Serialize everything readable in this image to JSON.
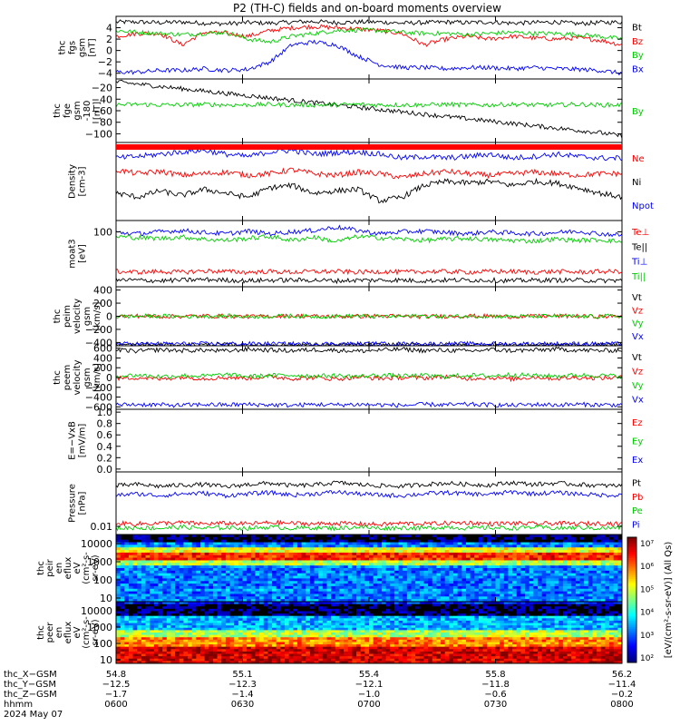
{
  "title": "P2 (TH-C) fields and on-board moments overview",
  "chart_data": [
    {
      "type": "line",
      "ylabel": [
        "thc",
        "fgs",
        "gsm",
        "[nT]"
      ],
      "ylim": [
        -5,
        6
      ],
      "ticks": [
        [
          "4",
          4
        ],
        [
          "2",
          2
        ],
        [
          "0",
          0
        ],
        [
          "−2",
          -2
        ],
        [
          "−4",
          -4
        ]
      ],
      "series": [
        {
          "name": "Bt",
          "color": "#000000",
          "values": [
            5.0,
            5.0,
            4.9,
            5.0,
            4.8,
            4.7,
            4.9,
            4.8,
            5.0,
            5.1,
            4.9,
            5.0,
            5.0,
            4.8,
            4.9,
            5.0,
            4.9,
            5.0,
            4.8,
            4.9,
            5.0,
            4.7,
            4.9,
            5.0
          ]
        },
        {
          "name": "Bz",
          "color": "#ff0000",
          "values": [
            2.5,
            3.0,
            3.0,
            1.0,
            3.2,
            3.0,
            2.5,
            3.5,
            4.0,
            4.2,
            4.0,
            3.8,
            3.5,
            3.0,
            1.0,
            2.0,
            2.5,
            2.0,
            2.5,
            2.2,
            2.0,
            2.2,
            1.8,
            1.0
          ]
        },
        {
          "name": "By",
          "color": "#00cc00",
          "values": [
            3.5,
            3.2,
            3.0,
            2.8,
            3.0,
            3.2,
            2.0,
            1.5,
            2.5,
            3.0,
            3.5,
            3.6,
            3.5,
            3.2,
            3.0,
            3.0,
            2.8,
            3.0,
            3.2,
            3.0,
            3.0,
            2.8,
            2.5,
            2.0
          ]
        },
        {
          "name": "Bx",
          "color": "#0000ff",
          "values": [
            -3.8,
            -3.8,
            -3.5,
            -3.5,
            -3.2,
            -3.5,
            -3.3,
            -2.0,
            1.0,
            1.5,
            1.0,
            -1.0,
            -2.5,
            -3.0,
            -3.0,
            -3.2,
            -3.0,
            -3.0,
            -3.2,
            -3.0,
            -3.2,
            -3.3,
            -3.5,
            -4.0
          ]
        }
      ]
    },
    {
      "type": "line",
      "ylabel": [
        "thc",
        "fge",
        "gsm",
        "-180",
        "[nT]"
      ],
      "ylim": [
        -115,
        -5
      ],
      "ticks": [
        [
          "−20",
          -20
        ],
        [
          "−40",
          -40
        ],
        [
          "−60",
          -60
        ],
        [
          "−80",
          -80
        ],
        [
          "−100",
          -100
        ]
      ],
      "series": [
        {
          "name": "",
          "color": "#000000",
          "values": [
            -10,
            -14,
            -18,
            -22,
            -26,
            -30,
            -34,
            -38,
            -42,
            -46,
            -50,
            -54,
            -58,
            -62,
            -66,
            -70,
            -74,
            -78,
            -82,
            -86,
            -90,
            -94,
            -98,
            -104
          ]
        },
        {
          "name": "By",
          "color": "#00cc00",
          "values": [
            -50,
            -49,
            -50,
            -50,
            -49,
            -50,
            -50,
            -49,
            -50,
            -50,
            -50,
            -49,
            -50,
            -50,
            -50,
            -49,
            -50,
            -50,
            -49,
            -50,
            -50,
            -49,
            -50,
            -50
          ]
        }
      ]
    },
    {
      "type": "line",
      "ylabel": [
        "Density",
        "[cm-3]"
      ],
      "ylim": [
        0,
        10
      ],
      "ticks": [],
      "series": [
        {
          "name": "Ne",
          "color": "#ff0000",
          "values": [
            6.5,
            6.0,
            6.3,
            5.8,
            6.0,
            6.2,
            5.8,
            6.0,
            6.5,
            6.0,
            5.8,
            6.2,
            6.0,
            5.5,
            6.0,
            6.3,
            6.0,
            5.8,
            6.0,
            6.2,
            6.0,
            5.8,
            6.0,
            6.0
          ]
        },
        {
          "name": "Ni",
          "color": "#000000",
          "values": [
            3.5,
            3.0,
            3.8,
            3.2,
            4.0,
            3.5,
            3.0,
            4.2,
            4.5,
            3.5,
            3.8,
            4.0,
            2.5,
            3.0,
            4.5,
            5.0,
            4.8,
            5.0,
            4.5,
            5.0,
            4.8,
            4.2,
            3.5,
            3.0
          ]
        },
        {
          "name": "Npot",
          "color": "#0000ff",
          "values": [
            8.0,
            8.2,
            8.5,
            8.8,
            9.0,
            8.5,
            8.2,
            8.8,
            9.0,
            8.5,
            8.7,
            8.8,
            8.5,
            8.0,
            8.2,
            8.0,
            8.2,
            8.5,
            8.0,
            8.2,
            8.5,
            8.2,
            8.0,
            8.0
          ]
        }
      ]
    },
    {
      "type": "line",
      "ylabel": [
        "moat3",
        "[eV]"
      ],
      "ylim": [
        0,
        10
      ],
      "ticks": [
        [
          "100",
          8.3
        ]
      ],
      "series": [
        {
          "name": "Te⊥",
          "color": "#ff0000",
          "values": [
            2.3,
            2.2,
            2.3,
            2.2,
            2.4,
            2.3,
            2.2,
            2.3,
            2.2,
            2.3,
            2.3,
            2.2,
            2.3,
            2.2,
            2.3,
            2.3,
            2.2,
            2.3,
            2.3,
            2.2,
            2.3,
            2.2,
            2.3,
            2.3
          ]
        },
        {
          "name": "Te||",
          "color": "#000000",
          "values": [
            1.0,
            1.0,
            0.9,
            1.0,
            1.1,
            1.0,
            0.9,
            1.0,
            1.0,
            1.0,
            0.9,
            1.0,
            1.0,
            1.0,
            0.9,
            1.0,
            1.0,
            1.0,
            0.9,
            1.0,
            1.0,
            1.0,
            0.9,
            1.0
          ]
        },
        {
          "name": "Ti⊥",
          "color": "#0000ff",
          "values": [
            8.2,
            8.0,
            8.3,
            8.5,
            8.2,
            8.0,
            8.4,
            8.0,
            8.3,
            8.5,
            9.0,
            8.5,
            8.0,
            8.3,
            8.4,
            8.2,
            8.0,
            8.3,
            8.1,
            8.0,
            8.2,
            8.4,
            8.0,
            7.8
          ]
        },
        {
          "name": "Ti||",
          "color": "#00cc00",
          "values": [
            7.6,
            7.4,
            7.3,
            7.5,
            7.2,
            7.0,
            7.3,
            7.6,
            7.0,
            7.5,
            6.8,
            7.6,
            7.4,
            7.2,
            7.0,
            7.2,
            7.3,
            7.1,
            7.0,
            6.9,
            7.2,
            7.0,
            7.1,
            6.8
          ]
        }
      ]
    },
    {
      "type": "line",
      "ylabel": [
        "thc",
        "peim",
        "velocity",
        "gsm",
        "[km/s]"
      ],
      "ylim": [
        -450,
        450
      ],
      "ticks": [
        [
          "400",
          400
        ],
        [
          "200",
          200
        ],
        [
          "0",
          0
        ],
        [
          "−200",
          -200
        ],
        [
          "−400",
          -400
        ]
      ],
      "series": [
        {
          "name": "Vt",
          "color": "#000000",
          "values": [
            -435,
            -435,
            -435,
            -435,
            -435,
            -435,
            -435,
            -435,
            -435,
            -435,
            -435,
            -435,
            -435,
            -435,
            -435,
            -435,
            -435,
            -435,
            -435,
            -435,
            -435,
            -435,
            -435,
            -435
          ]
        },
        {
          "name": "Vz",
          "color": "#ff0000",
          "values": [
            0,
            5,
            -5,
            0,
            5,
            0,
            -5,
            0,
            5,
            0,
            -5,
            0,
            5,
            0,
            -5,
            0,
            5,
            0,
            -5,
            0,
            5,
            0,
            -5,
            0
          ]
        },
        {
          "name": "Vy",
          "color": "#00cc00",
          "values": [
            -5,
            0,
            5,
            -5,
            0,
            5,
            -5,
            0,
            5,
            -5,
            0,
            5,
            -5,
            0,
            5,
            -5,
            0,
            5,
            -5,
            0,
            5,
            -5,
            0,
            5
          ]
        },
        {
          "name": "Vx",
          "color": "#0000ff",
          "values": [
            -420,
            -420,
            -420,
            -420,
            -420,
            -420,
            -420,
            -420,
            -420,
            -420,
            -420,
            -420,
            -420,
            -420,
            -420,
            -420,
            -420,
            -420,
            -420,
            -420,
            -420,
            -420,
            -420,
            -420
          ]
        }
      ]
    },
    {
      "type": "line",
      "ylabel": [
        "thc",
        "peem",
        "velocity",
        "gsm",
        "[km/s]"
      ],
      "ylim": [
        -650,
        650
      ],
      "ticks": [
        [
          "600",
          600
        ],
        [
          "400",
          400
        ],
        [
          "200",
          200
        ],
        [
          "0",
          0
        ],
        [
          "−200",
          -200
        ],
        [
          "−400",
          -400
        ],
        [
          "−600",
          -600
        ]
      ],
      "series": [
        {
          "name": "Vt",
          "color": "#000000",
          "values": [
            560,
            540,
            570,
            550,
            560,
            540,
            580,
            560,
            550,
            570,
            560,
            540,
            560,
            580,
            550,
            560,
            540,
            570,
            550,
            560,
            580,
            560,
            550,
            560
          ]
        },
        {
          "name": "Vz",
          "color": "#ff0000",
          "values": [
            -20,
            0,
            -30,
            10,
            -20,
            0,
            -10,
            20,
            -20,
            0,
            -30,
            10,
            -20,
            0,
            -10,
            20,
            -20,
            0,
            -30,
            10,
            -20,
            0,
            -10,
            0
          ]
        },
        {
          "name": "Vy",
          "color": "#00cc00",
          "values": [
            30,
            50,
            20,
            40,
            30,
            60,
            20,
            40,
            50,
            30,
            40,
            20,
            50,
            30,
            40,
            20,
            50,
            30,
            60,
            40,
            30,
            50,
            40,
            30
          ]
        },
        {
          "name": "Vx",
          "color": "#0000ff",
          "values": [
            -560,
            -550,
            -560,
            -570,
            -550,
            -560,
            -550,
            -560,
            -570,
            -550,
            -560,
            -550,
            -560,
            -570,
            -550,
            -560,
            -550,
            -560,
            -570,
            -550,
            -560,
            -550,
            -560,
            -560
          ]
        }
      ]
    },
    {
      "type": "line",
      "ylabel": [
        "E=−VxB",
        "[mV/m]"
      ],
      "ylim": [
        -0.05,
        1.05
      ],
      "ticks": [
        [
          "1.0",
          1.0
        ],
        [
          "0.8",
          0.8
        ],
        [
          "0.6",
          0.6
        ],
        [
          "0.4",
          0.4
        ],
        [
          "0.2",
          0.2
        ],
        [
          "0.0",
          0.0
        ]
      ],
      "series": [
        {
          "name": "Ez",
          "color": "#ff0000",
          "values": []
        },
        {
          "name": "Ey",
          "color": "#00cc00",
          "values": []
        },
        {
          "name": "Ex",
          "color": "#0000ff",
          "values": []
        }
      ]
    },
    {
      "type": "line",
      "ylabel": [
        "Pressure",
        "[nPa]"
      ],
      "ylim": [
        0,
        10
      ],
      "ticks": [
        [
          "0.01",
          1.3
        ]
      ],
      "series": [
        {
          "name": "Pt",
          "color": "#000000",
          "values": [
            7.8,
            8.0,
            7.7,
            7.9,
            8.0,
            7.6,
            8.0,
            8.2,
            7.8,
            7.9,
            8.3,
            8.0,
            7.8,
            7.7,
            8.0,
            8.2,
            8.0,
            7.9,
            8.3,
            8.0,
            8.2,
            8.0,
            7.8,
            7.8
          ]
        },
        {
          "name": "Pb",
          "color": "#ff0000",
          "values": [
            1.8,
            1.7,
            1.8,
            1.9,
            1.7,
            1.8,
            1.7,
            1.9,
            1.8,
            1.7,
            1.8,
            1.7,
            1.6,
            1.8,
            1.7,
            1.8,
            1.9,
            1.7,
            1.8,
            1.7,
            1.8,
            1.7,
            1.8,
            1.7
          ]
        },
        {
          "name": "Pe",
          "color": "#00cc00",
          "values": [
            1.0,
            1.1,
            1.0,
            1.2,
            1.0,
            1.1,
            1.0,
            1.2,
            1.0,
            1.1,
            1.0,
            1.2,
            1.0,
            1.1,
            1.0,
            1.2,
            1.0,
            1.1,
            1.0,
            1.2,
            1.0,
            1.1,
            1.0,
            1.1
          ]
        },
        {
          "name": "Pi",
          "color": "#0000ff",
          "values": [
            6.3,
            6.5,
            6.2,
            6.5,
            6.6,
            6.2,
            6.5,
            6.7,
            6.3,
            6.5,
            6.8,
            6.5,
            6.3,
            6.2,
            6.5,
            6.7,
            6.5,
            6.4,
            6.8,
            6.5,
            6.7,
            6.5,
            6.3,
            6.3
          ]
        }
      ]
    },
    {
      "type": "heatmap",
      "ylabel": [
        "thc",
        "peir",
        "en",
        "eflux",
        "eV",
        "(cm²-s-",
        "sr-eV)"
      ],
      "yscale": "log",
      "ticks": [
        "10000",
        "1000",
        "100",
        "10"
      ]
    },
    {
      "type": "heatmap",
      "ylabel": [
        "thc",
        "peer",
        "en",
        "eflux",
        "eV",
        "(cm²-s-",
        "sr-eV)"
      ],
      "yscale": "log",
      "ticks": [
        "10000",
        "1000",
        "100",
        "10"
      ]
    }
  ],
  "colorbar": {
    "ticks": [
      "10⁷",
      "10⁶",
      "10⁵",
      "10⁴",
      "10³",
      "10²"
    ],
    "label": "[eV/(cm²-s-sr-eV)] (All Qs)"
  },
  "x_axis": {
    "row_labels": [
      "thc_X−GSM",
      "thc_Y−GSM",
      "thc_Z−GSM",
      "hhmm",
      "2024 May 07"
    ],
    "columns": [
      [
        "54.8",
        "−12.5",
        "−1.7",
        "0600"
      ],
      [
        "55.1",
        "−12.3",
        "−1.4",
        "0630"
      ],
      [
        "55.4",
        "−12.1",
        "−1.0",
        "0700"
      ],
      [
        "55.8",
        "−11.8",
        "−0.6",
        "0730"
      ],
      [
        "56.2",
        "−11.4",
        "−0.2",
        "0800"
      ]
    ]
  }
}
